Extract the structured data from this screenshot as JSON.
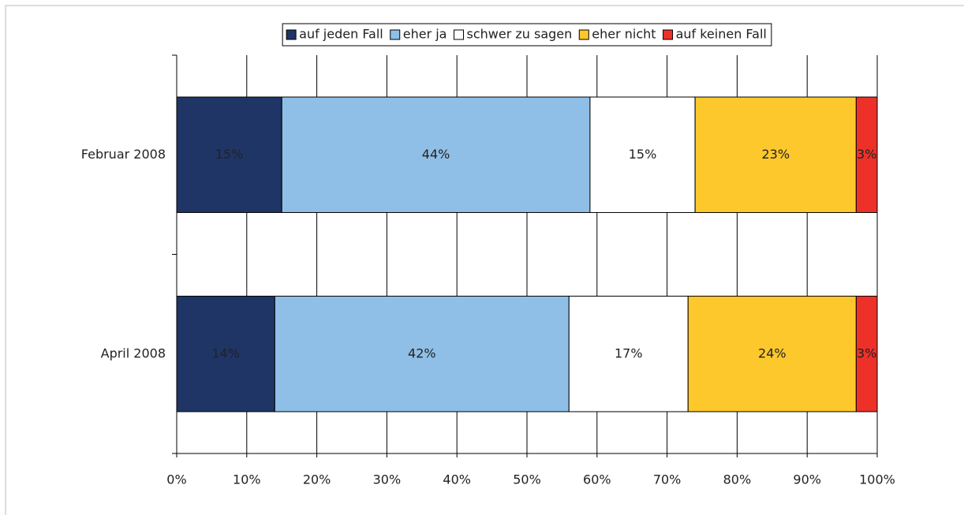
{
  "chart_data": {
    "type": "stacked-barh",
    "categories": [
      "Februar 2008",
      "April 2008"
    ],
    "series": [
      {
        "name": "auf jeden Fall",
        "color": "#1f3566",
        "values": [
          15,
          14
        ],
        "value_labels": [
          "15%",
          "14%"
        ]
      },
      {
        "name": "eher ja",
        "color": "#8fbfe7",
        "values": [
          44,
          42
        ],
        "value_labels": [
          "44%",
          "42%"
        ]
      },
      {
        "name": "schwer zu sagen",
        "color": "#ffffff",
        "values": [
          15,
          17
        ],
        "value_labels": [
          "15%",
          "17%"
        ]
      },
      {
        "name": "eher nicht",
        "color": "#fdc82b",
        "values": [
          23,
          24
        ],
        "value_labels": [
          "23%",
          "24%"
        ]
      },
      {
        "name": "auf keinen Fall",
        "color": "#ee3128",
        "values": [
          3,
          3
        ],
        "value_labels": [
          "3%",
          "3%"
        ]
      }
    ],
    "xlim": [
      0,
      100
    ],
    "xticks": [
      {
        "value": 0,
        "label": "0%"
      },
      {
        "value": 10,
        "label": "10%"
      },
      {
        "value": 20,
        "label": "20%"
      },
      {
        "value": 30,
        "label": "30%"
      },
      {
        "value": 40,
        "label": "40%"
      },
      {
        "value": 50,
        "label": "50%"
      },
      {
        "value": 60,
        "label": "60%"
      },
      {
        "value": 70,
        "label": "70%"
      },
      {
        "value": 80,
        "label": "80%"
      },
      {
        "value": 90,
        "label": "90%"
      },
      {
        "value": 100,
        "label": "100%"
      }
    ],
    "grid": true,
    "legend": "top"
  }
}
